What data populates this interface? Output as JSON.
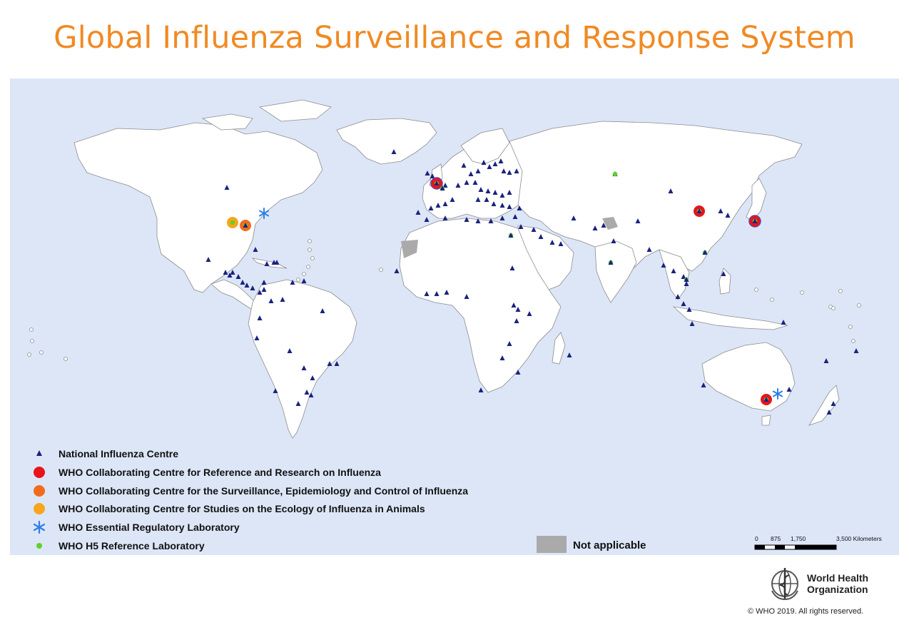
{
  "title": "Global Influenza Surveillance and Response System",
  "legend": [
    {
      "label": "National Influenza Centre",
      "symbol": "triangle",
      "color": "#1a237e"
    },
    {
      "label": "WHO Collaborating Centre for Reference and Research on Influenza",
      "symbol": "circle",
      "color": "#e8141c"
    },
    {
      "label": "WHO Collaborating Centre for the Surveillance, Epidemiology and Control of Influenza",
      "symbol": "circle",
      "color": "#f26b1d"
    },
    {
      "label": "WHO Collaborating Centre for Studies on the Ecology of Influenza in Animals",
      "symbol": "circle",
      "color": "#f7a51c"
    },
    {
      "label": "WHO Essential Regulatory Laboratory",
      "symbol": "asterisk",
      "color": "#2f7fe8"
    },
    {
      "label": "WHO H5 Reference Laboratory",
      "symbol": "small-dot",
      "color": "#5fd12a"
    }
  ],
  "not_applicable": {
    "label": "Not applicable",
    "color": "#aaaaaa"
  },
  "scale_bar": {
    "ticks": [
      "0",
      "875",
      "1,750",
      "3,500 Kilometers"
    ]
  },
  "colors": {
    "ocean": "#dde6f7",
    "land": "#ffffff",
    "border": "#8c8c8c",
    "title": "#f08a24"
  },
  "organization": {
    "line1": "World Health",
    "line2": "Organization",
    "icon": "who-emblem-icon"
  },
  "copyright": "© WHO 2019. All rights reserved."
}
